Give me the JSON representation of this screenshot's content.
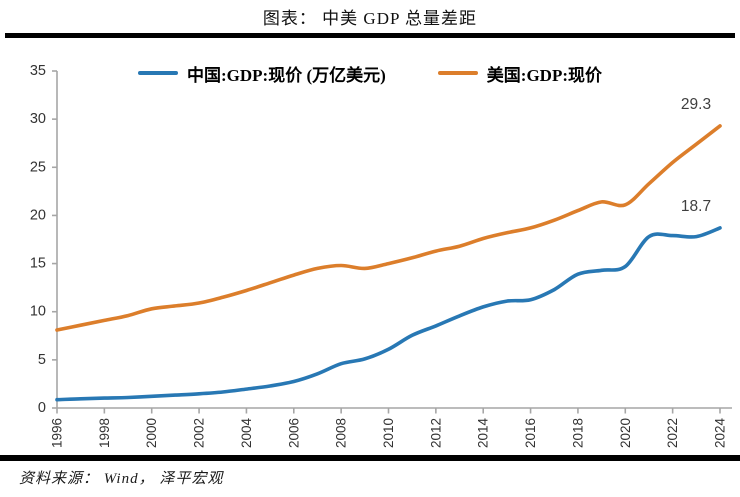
{
  "header": {
    "title": "图表： 中美 GDP 总量差距"
  },
  "footer": {
    "source": "资料来源： Wind， 泽平宏观"
  },
  "chart_data": {
    "type": "line",
    "title": "图表： 中美 GDP 总量差距",
    "xlabel": "",
    "ylabel": "",
    "x": [
      1996,
      1997,
      1998,
      1999,
      2000,
      2001,
      2002,
      2003,
      2004,
      2005,
      2006,
      2007,
      2008,
      2009,
      2010,
      2011,
      2012,
      2013,
      2014,
      2015,
      2016,
      2017,
      2018,
      2019,
      2020,
      2021,
      2022,
      2023,
      2024
    ],
    "xticks": [
      1996,
      1998,
      2000,
      2002,
      2004,
      2006,
      2008,
      2010,
      2012,
      2014,
      2016,
      2018,
      2020,
      2022,
      2024
    ],
    "yticks": [
      0,
      5,
      10,
      15,
      20,
      25,
      30,
      35
    ],
    "ylim": [
      0,
      35
    ],
    "grid": false,
    "legend_position": "top",
    "axis_color": "#a6a6a6",
    "tick_label_color": "#333333",
    "data_label_color": "#3f3f3f",
    "series": [
      {
        "name": "中国:GDP:现价 (万亿美元)",
        "color": "#2878b4",
        "end_label": "18.7",
        "values": [
          0.86,
          0.96,
          1.03,
          1.09,
          1.21,
          1.34,
          1.47,
          1.66,
          1.96,
          2.29,
          2.75,
          3.55,
          4.6,
          5.1,
          6.1,
          7.55,
          8.53,
          9.57,
          10.5,
          11.1,
          11.25,
          12.3,
          13.9,
          14.3,
          14.7,
          17.8,
          17.9,
          17.8,
          18.7
        ]
      },
      {
        "name": "美国:GDP:现价",
        "color": "#dc7e2b",
        "end_label": "29.3",
        "values": [
          8.1,
          8.6,
          9.1,
          9.6,
          10.3,
          10.6,
          10.9,
          11.5,
          12.2,
          13.0,
          13.8,
          14.5,
          14.8,
          14.5,
          15.0,
          15.6,
          16.3,
          16.8,
          17.6,
          18.2,
          18.7,
          19.5,
          20.5,
          21.4,
          21.1,
          23.3,
          25.5,
          27.4,
          29.3
        ]
      }
    ]
  }
}
